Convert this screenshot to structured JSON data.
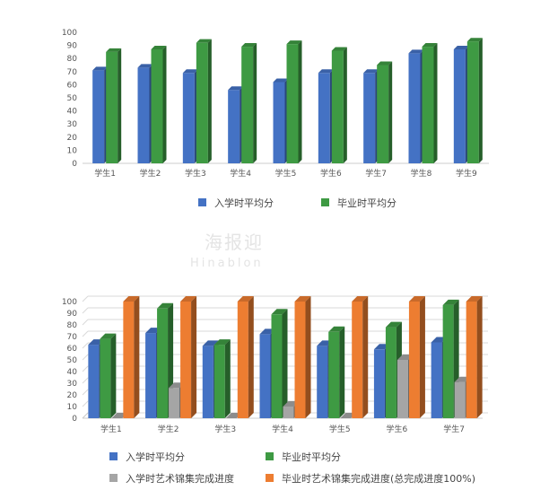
{
  "chart_data": [
    {
      "type": "bar",
      "categories": [
        "学生1",
        "学生2",
        "学生3",
        "学生4",
        "学生5",
        "学生6",
        "学生7",
        "学生8",
        "学生9"
      ],
      "series": [
        {
          "name": "入学时平均分",
          "color": "#4472c4",
          "values": [
            71,
            73,
            69,
            56,
            62,
            69,
            69,
            84,
            87
          ]
        },
        {
          "name": "毕业时平均分",
          "color": "#3e9a43",
          "values": [
            85,
            87,
            92,
            89,
            91,
            86,
            75,
            89,
            93
          ]
        }
      ],
      "ylim": [
        0,
        100
      ],
      "yticks": [
        0,
        10,
        20,
        30,
        40,
        50,
        60,
        70,
        80,
        90,
        100
      ],
      "grid": false,
      "legend_position": "bottom"
    },
    {
      "type": "bar",
      "categories": [
        "学生1",
        "学生2",
        "学生3",
        "学生4",
        "学生5",
        "学生6",
        "学生7"
      ],
      "series": [
        {
          "name": "入学时平均分",
          "color": "#4472c4",
          "values": [
            63,
            73,
            62,
            72,
            62,
            59,
            65
          ]
        },
        {
          "name": "毕业时平均分",
          "color": "#3e9a43",
          "values": [
            68,
            94,
            63,
            89,
            74,
            78,
            97
          ]
        },
        {
          "name": "入学时艺术锦集完成进度",
          "color": "#a5a5a5",
          "values": [
            0,
            26,
            0,
            10,
            0,
            50,
            31
          ]
        },
        {
          "name": "毕业时艺术锦集完成进度(总完成进度100%)",
          "color": "#ed7d31",
          "values": [
            100,
            100,
            100,
            100,
            100,
            100,
            100
          ]
        }
      ],
      "ylim": [
        0,
        100
      ],
      "yticks": [
        0,
        10,
        20,
        30,
        40,
        50,
        60,
        70,
        80,
        90,
        100
      ],
      "grid": true,
      "legend_position": "bottom"
    }
  ],
  "watermark": {
    "line1": "海报迎",
    "line2": "Hinablon"
  }
}
